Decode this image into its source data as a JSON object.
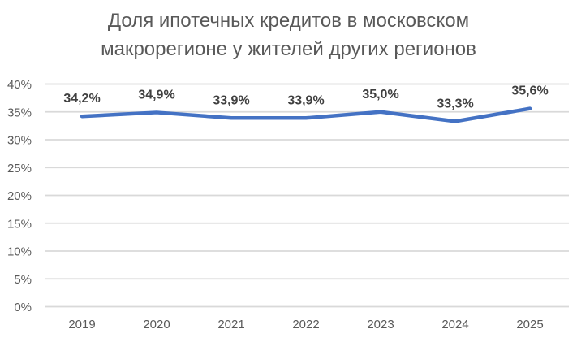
{
  "chart_data": {
    "type": "line",
    "title": "Доля ипотечных кредитов в московском макрорегионе у жителей других регионов",
    "categories": [
      "2019",
      "2020",
      "2021",
      "2022",
      "2023",
      "2024",
      "2025"
    ],
    "values": [
      34.2,
      34.9,
      33.9,
      33.9,
      35.0,
      33.3,
      35.6
    ],
    "data_labels": [
      "34,2%",
      "34,9%",
      "33,9%",
      "33,9%",
      "35,0%",
      "33,3%",
      "35,6%"
    ],
    "y_tick_values": [
      0,
      5,
      10,
      15,
      20,
      25,
      30,
      35,
      40
    ],
    "y_tick_labels": [
      "0%",
      "5%",
      "10%",
      "15%",
      "20%",
      "25%",
      "30%",
      "35%",
      "40%"
    ],
    "ylim": [
      0,
      40
    ],
    "xlabel": "",
    "ylabel": "",
    "grid": true,
    "legend": "none",
    "colors": {
      "line": "#4472C4",
      "gridline": "#D9D9D9",
      "title": "#595959",
      "axis_label": "#595959",
      "data_label": "#404040",
      "background": "#ffffff"
    }
  }
}
